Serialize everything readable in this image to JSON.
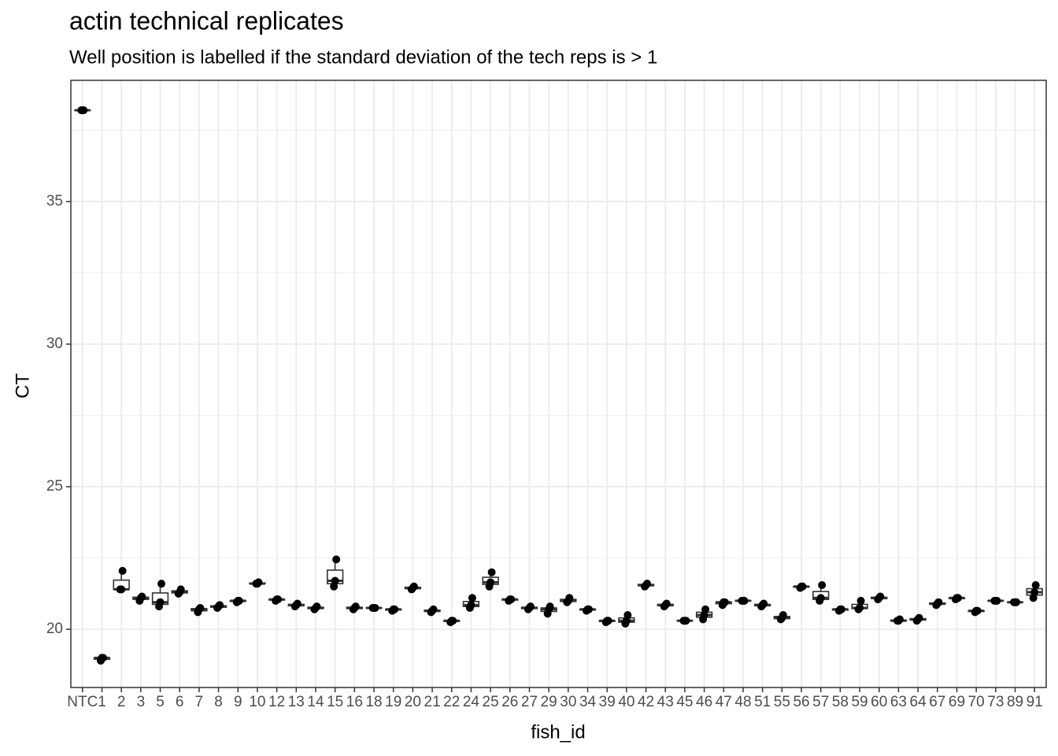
{
  "chart_data": {
    "type": "box",
    "title": "actin technical replicates",
    "subtitle": "Well position is  labelled if the standard deviation of the tech reps is > 1",
    "x_label": "fish_id",
    "y_label": "CT",
    "categories": [
      "NTC",
      "1",
      "2",
      "3",
      "5",
      "6",
      "7",
      "8",
      "9",
      "10",
      "12",
      "13",
      "14",
      "15",
      "16",
      "18",
      "19",
      "20",
      "21",
      "22",
      "24",
      "25",
      "26",
      "27",
      "29",
      "30",
      "34",
      "39",
      "40",
      "42",
      "43",
      "45",
      "46",
      "47",
      "48",
      "51",
      "55",
      "56",
      "57",
      "58",
      "59",
      "60",
      "63",
      "64",
      "67",
      "69",
      "70",
      "73",
      "89",
      "91"
    ],
    "points": [
      [
        38.2,
        38.2,
        38.2
      ],
      [
        18.9,
        19.0,
        19.0
      ],
      [
        21.4,
        21.4,
        22.05
      ],
      [
        21.0,
        21.1,
        21.15
      ],
      [
        20.8,
        20.95,
        21.6
      ],
      [
        21.25,
        21.3,
        21.4
      ],
      [
        20.6,
        20.7,
        20.75
      ],
      [
        20.75,
        20.8,
        20.85
      ],
      [
        20.95,
        21.0,
        21.0
      ],
      [
        21.6,
        21.6,
        21.65
      ],
      [
        21.0,
        21.05,
        21.05
      ],
      [
        20.8,
        20.85,
        20.9
      ],
      [
        20.7,
        20.75,
        20.8
      ],
      [
        21.5,
        21.7,
        22.45
      ],
      [
        20.7,
        20.75,
        20.8
      ],
      [
        20.75,
        20.75,
        20.75
      ],
      [
        20.65,
        20.7,
        20.7
      ],
      [
        21.4,
        21.45,
        21.5
      ],
      [
        20.6,
        20.65,
        20.7
      ],
      [
        20.25,
        20.3,
        20.3
      ],
      [
        20.75,
        20.85,
        21.1
      ],
      [
        21.5,
        21.65,
        22.0
      ],
      [
        21.0,
        21.05,
        21.05
      ],
      [
        20.7,
        20.75,
        20.8
      ],
      [
        20.55,
        20.7,
        20.8
      ],
      [
        20.95,
        21.0,
        21.1
      ],
      [
        20.65,
        20.7,
        20.7
      ],
      [
        20.25,
        20.3,
        20.3
      ],
      [
        20.2,
        20.3,
        20.5
      ],
      [
        21.5,
        21.55,
        21.6
      ],
      [
        20.8,
        20.85,
        20.9
      ],
      [
        20.3,
        20.3,
        20.3
      ],
      [
        20.35,
        20.5,
        20.7
      ],
      [
        20.85,
        20.95,
        20.95
      ],
      [
        21.0,
        21.0,
        21.0
      ],
      [
        20.8,
        20.85,
        20.9
      ],
      [
        20.35,
        20.4,
        20.5
      ],
      [
        21.45,
        21.5,
        21.5
      ],
      [
        21.0,
        21.1,
        21.55
      ],
      [
        20.65,
        20.7,
        20.7
      ],
      [
        20.7,
        20.75,
        21.0
      ],
      [
        21.05,
        21.1,
        21.15
      ],
      [
        20.3,
        20.3,
        20.35
      ],
      [
        20.3,
        20.35,
        20.4
      ],
      [
        20.85,
        20.9,
        20.95
      ],
      [
        21.05,
        21.1,
        21.1
      ],
      [
        20.6,
        20.65,
        20.65
      ],
      [
        21.0,
        21.0,
        21.0
      ],
      [
        20.95,
        20.95,
        20.95
      ],
      [
        21.1,
        21.3,
        21.55
      ]
    ],
    "q1": [
      38.2,
      18.95,
      21.4,
      21.05,
      20.875,
      21.275,
      20.65,
      20.775,
      20.975,
      21.6,
      21.025,
      20.825,
      20.725,
      21.6,
      20.725,
      20.75,
      20.675,
      21.425,
      20.625,
      20.275,
      20.8,
      21.575,
      21.025,
      20.725,
      20.625,
      20.975,
      20.675,
      20.275,
      20.25,
      21.525,
      20.825,
      20.3,
      20.425,
      20.9,
      21.0,
      20.825,
      20.375,
      21.475,
      21.05,
      20.675,
      20.725,
      21.075,
      20.3,
      20.325,
      20.875,
      21.075,
      20.625,
      21.0,
      20.95,
      21.2
    ],
    "q3": [
      38.2,
      19.0,
      21.725,
      21.125,
      21.275,
      21.35,
      20.725,
      20.825,
      21.0,
      21.625,
      21.05,
      20.875,
      20.775,
      22.075,
      20.775,
      20.75,
      20.7,
      21.475,
      20.675,
      20.3,
      20.975,
      21.825,
      21.05,
      20.775,
      20.75,
      21.05,
      20.7,
      20.3,
      20.4,
      21.575,
      20.875,
      20.3,
      20.6,
      20.95,
      21.0,
      20.875,
      20.45,
      21.5,
      21.325,
      20.7,
      20.875,
      21.125,
      20.325,
      20.375,
      20.925,
      21.1,
      20.65,
      21.0,
      20.95,
      21.425
    ],
    "ylim": [
      17.96,
      39.25
    ],
    "yticks": [
      20,
      25,
      30,
      35
    ],
    "minor_yticks": [
      22.5,
      27.5,
      32.5,
      37.5
    ],
    "grid": true,
    "color": "#000000"
  }
}
